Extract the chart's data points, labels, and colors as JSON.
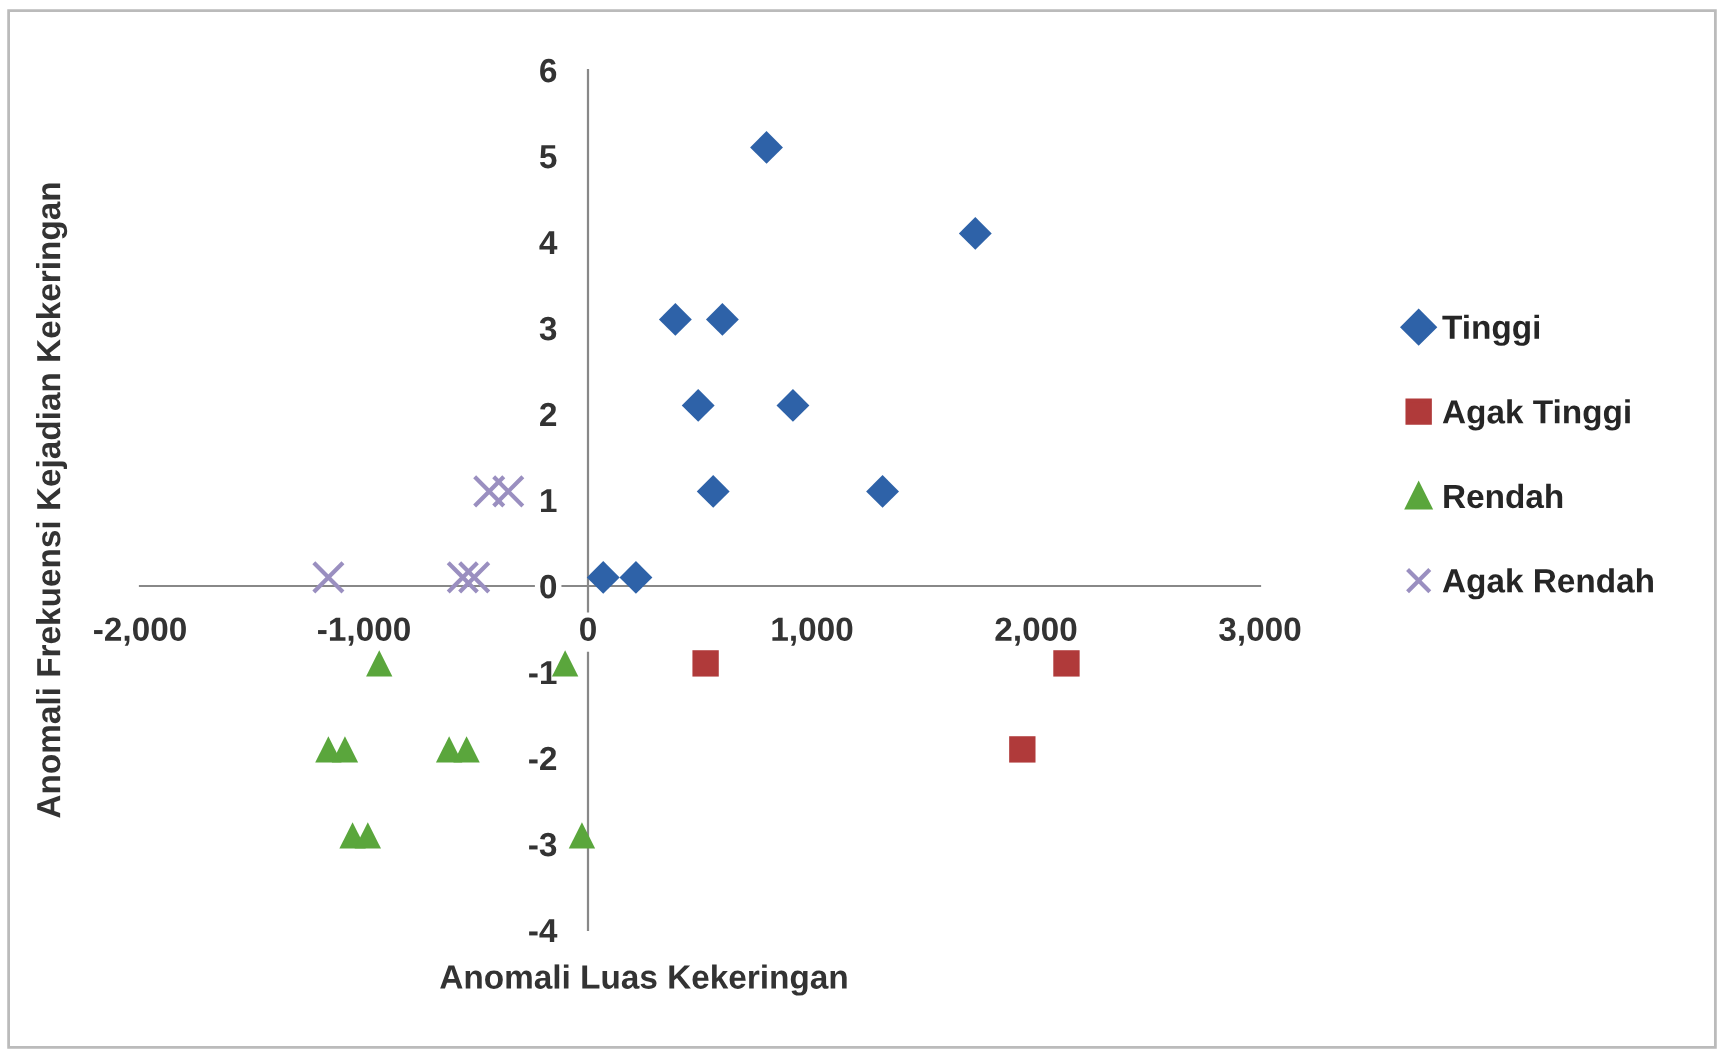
{
  "chart_data": {
    "type": "scatter",
    "xlabel": "Anomali Luas Kekeringan",
    "ylabel": "Anomali Frekuensi Kejadian Kekeringan",
    "xlim": [
      -2000,
      3000
    ],
    "ylim": [
      -4,
      6
    ],
    "xticks": [
      {
        "value": -2000,
        "label": "-2,000"
      },
      {
        "value": -1000,
        "label": "-1,000"
      },
      0,
      {
        "value": 1000,
        "label": "1,000"
      },
      {
        "value": 2000,
        "label": "2,000"
      },
      {
        "value": 3000,
        "label": "3,000"
      }
    ],
    "yticks": [
      -4,
      -3,
      -2,
      -1,
      0,
      1,
      2,
      3,
      4,
      5,
      6
    ],
    "grid": false,
    "legend": "right",
    "series": [
      {
        "name": "Tinggi",
        "color": "#2e62a8",
        "marker": "diamond",
        "x": [
          797,
          1729,
          390,
          600,
          492,
          915,
          559,
          1315,
          68,
          214
        ],
        "values": [
          5.1,
          4.1,
          3.1,
          3.1,
          2.1,
          2.1,
          1.1,
          1.1,
          0.1,
          0.1
        ]
      },
      {
        "name": "Agak Tinggi",
        "color": "#b03a3a",
        "marker": "square",
        "x": [
          525,
          2136,
          1939
        ],
        "values": [
          -0.9,
          -0.9,
          -1.9
        ]
      },
      {
        "name": "Rendah",
        "color": "#5aa63c",
        "marker": "triangle",
        "x": [
          -932,
          -102,
          -1159,
          -1085,
          -620,
          -542,
          -1051,
          -983,
          -27
        ],
        "values": [
          -0.9,
          -0.9,
          -1.9,
          -1.9,
          -1.9,
          -1.9,
          -2.9,
          -2.9,
          -2.9
        ]
      },
      {
        "name": "Agak Rendah",
        "color": "#9a8fc0",
        "marker": "cross",
        "x": [
          -1159,
          -559,
          -508,
          -441,
          -356
        ],
        "values": [
          0.1,
          0.1,
          0.1,
          1.1,
          1.1
        ]
      }
    ]
  }
}
